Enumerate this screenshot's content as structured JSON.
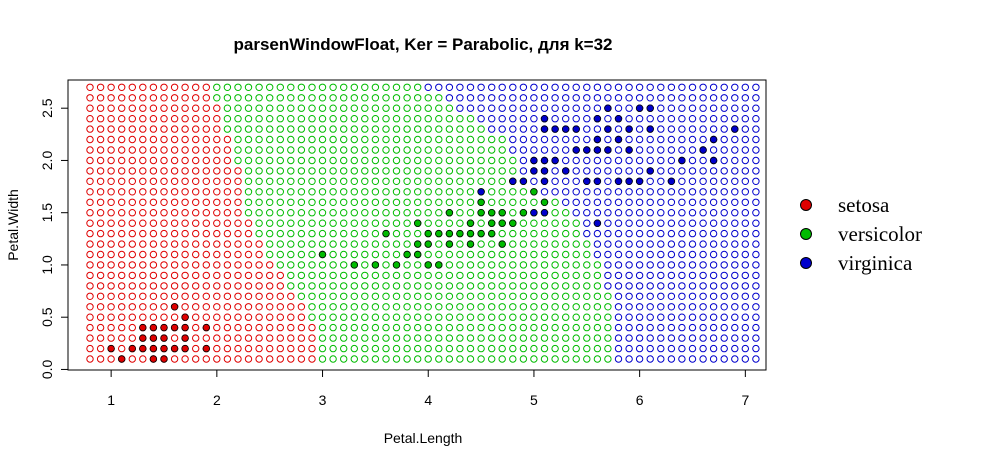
{
  "chart_data": {
    "type": "scatter",
    "title": "parsenWindowFloat, Ker = Parabolic, для k=32",
    "xlabel": "Petal.Length",
    "ylabel": "Petal.Width",
    "xlim": [
      0.8,
      7.1
    ],
    "ylim": [
      0.1,
      2.7
    ],
    "x_ticks": [
      "1",
      "2",
      "3",
      "4",
      "5",
      "6",
      "7"
    ],
    "y_ticks": [
      "0.0",
      "0.5",
      "1.0",
      "1.5",
      "2.0",
      "2.5"
    ],
    "grid": false,
    "legend_position": "right",
    "classes": [
      {
        "name": "setosa",
        "color": "#DF0000"
      },
      {
        "name": "versicolor",
        "color": "#00BB00"
      },
      {
        "name": "virginica",
        "color": "#0000CC"
      }
    ],
    "classification_grid": {
      "x_start": 0.8,
      "x_end": 7.1,
      "x_step": 0.1,
      "y_start": 0.1,
      "y_end": 2.7,
      "y_step": 0.1,
      "marker": "open-circle",
      "rule": "class boundaries estimated from image: setosa left, versicolor middle, virginica right"
    },
    "series": [
      {
        "name": "setosa",
        "marker": "filled-circle",
        "points": [
          [
            1.0,
            0.2
          ],
          [
            1.1,
            0.1
          ],
          [
            1.2,
            0.2
          ],
          [
            1.3,
            0.2
          ],
          [
            1.3,
            0.3
          ],
          [
            1.3,
            0.4
          ],
          [
            1.4,
            0.1
          ],
          [
            1.4,
            0.2
          ],
          [
            1.4,
            0.3
          ],
          [
            1.4,
            0.4
          ],
          [
            1.5,
            0.1
          ],
          [
            1.5,
            0.2
          ],
          [
            1.5,
            0.3
          ],
          [
            1.5,
            0.4
          ],
          [
            1.6,
            0.2
          ],
          [
            1.6,
            0.4
          ],
          [
            1.6,
            0.6
          ],
          [
            1.7,
            0.2
          ],
          [
            1.7,
            0.3
          ],
          [
            1.7,
            0.4
          ],
          [
            1.7,
            0.5
          ],
          [
            1.9,
            0.2
          ],
          [
            1.9,
            0.4
          ]
        ]
      },
      {
        "name": "versicolor",
        "marker": "filled-circle",
        "points": [
          [
            3.0,
            1.1
          ],
          [
            3.3,
            1.0
          ],
          [
            3.5,
            1.0
          ],
          [
            3.6,
            1.3
          ],
          [
            3.7,
            1.0
          ],
          [
            3.8,
            1.1
          ],
          [
            3.9,
            1.1
          ],
          [
            3.9,
            1.2
          ],
          [
            3.9,
            1.4
          ],
          [
            4.0,
            1.0
          ],
          [
            4.0,
            1.2
          ],
          [
            4.0,
            1.3
          ],
          [
            4.1,
            1.0
          ],
          [
            4.1,
            1.3
          ],
          [
            4.2,
            1.2
          ],
          [
            4.2,
            1.3
          ],
          [
            4.2,
            1.5
          ],
          [
            4.3,
            1.3
          ],
          [
            4.4,
            1.2
          ],
          [
            4.4,
            1.3
          ],
          [
            4.4,
            1.4
          ],
          [
            4.5,
            1.3
          ],
          [
            4.5,
            1.5
          ],
          [
            4.5,
            1.6
          ],
          [
            4.6,
            1.3
          ],
          [
            4.6,
            1.4
          ],
          [
            4.6,
            1.5
          ],
          [
            4.7,
            1.2
          ],
          [
            4.7,
            1.4
          ],
          [
            4.7,
            1.5
          ],
          [
            4.8,
            1.4
          ],
          [
            4.8,
            1.8
          ],
          [
            4.9,
            1.5
          ],
          [
            5.0,
            1.7
          ],
          [
            5.1,
            1.6
          ]
        ]
      },
      {
        "name": "virginica",
        "marker": "filled-circle",
        "points": [
          [
            4.5,
            1.7
          ],
          [
            4.8,
            1.8
          ],
          [
            4.9,
            1.8
          ],
          [
            5.0,
            1.5
          ],
          [
            5.0,
            1.9
          ],
          [
            5.0,
            2.0
          ],
          [
            5.1,
            1.5
          ],
          [
            5.1,
            1.8
          ],
          [
            5.1,
            1.9
          ],
          [
            5.1,
            2.0
          ],
          [
            5.1,
            2.3
          ],
          [
            5.1,
            2.4
          ],
          [
            5.2,
            2.0
          ],
          [
            5.2,
            2.3
          ],
          [
            5.3,
            1.9
          ],
          [
            5.3,
            2.3
          ],
          [
            5.4,
            2.1
          ],
          [
            5.4,
            2.3
          ],
          [
            5.5,
            1.8
          ],
          [
            5.5,
            2.1
          ],
          [
            5.6,
            1.4
          ],
          [
            5.6,
            1.8
          ],
          [
            5.6,
            2.1
          ],
          [
            5.6,
            2.2
          ],
          [
            5.6,
            2.4
          ],
          [
            5.7,
            2.1
          ],
          [
            5.7,
            2.3
          ],
          [
            5.7,
            2.5
          ],
          [
            5.8,
            1.8
          ],
          [
            5.8,
            2.2
          ],
          [
            5.8,
            2.4
          ],
          [
            5.9,
            1.8
          ],
          [
            5.9,
            2.1
          ],
          [
            5.9,
            2.3
          ],
          [
            6.0,
            1.8
          ],
          [
            6.0,
            2.5
          ],
          [
            6.1,
            1.9
          ],
          [
            6.1,
            2.3
          ],
          [
            6.1,
            2.5
          ],
          [
            6.3,
            1.8
          ],
          [
            6.4,
            2.0
          ],
          [
            6.6,
            2.1
          ],
          [
            6.7,
            2.0
          ],
          [
            6.7,
            2.2
          ],
          [
            6.9,
            2.3
          ]
        ]
      }
    ]
  }
}
